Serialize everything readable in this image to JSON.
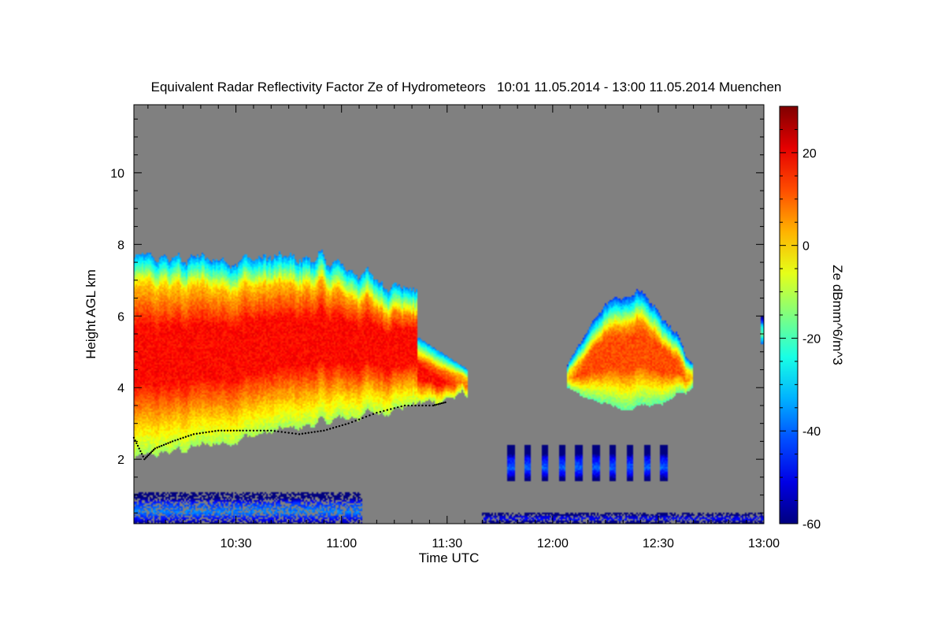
{
  "chart_data": {
    "type": "heatmap",
    "title": "Equivalent Radar Reflectivity Factor Ze of Hydrometeors   10:01 11.05.2014 - 13:00 11.05.2014 Muenchen",
    "xlabel": "Time UTC",
    "ylabel": "Height AGL km",
    "colorbar_label": "Ze dBmm^6/m^3",
    "x_unit": "minutes of day (UTC)",
    "xlim": [
      601,
      780
    ],
    "ylim": [
      0.2,
      11.9
    ],
    "x_ticks": [
      {
        "value": 630,
        "label": "10:30"
      },
      {
        "value": 660,
        "label": "11:00"
      },
      {
        "value": 690,
        "label": "11:30"
      },
      {
        "value": 720,
        "label": "12:00"
      },
      {
        "value": 750,
        "label": "12:30"
      },
      {
        "value": 780,
        "label": "13:00"
      }
    ],
    "y_ticks": [
      {
        "value": 2,
        "label": "2"
      },
      {
        "value": 4,
        "label": "4"
      },
      {
        "value": 6,
        "label": "6"
      },
      {
        "value": 8,
        "label": "8"
      },
      {
        "value": 10,
        "label": "10"
      }
    ],
    "colorbar": {
      "range": [
        -60,
        30
      ],
      "ticks": [
        {
          "value": 20,
          "label": "20"
        },
        {
          "value": 0,
          "label": "0"
        },
        {
          "value": -20,
          "label": "-20"
        },
        {
          "value": -40,
          "label": "-40"
        },
        {
          "value": -60,
          "label": "-60"
        }
      ],
      "colormap": "jet"
    },
    "background_color": "#808080",
    "echo_regions": [
      {
        "name": "main-cloud",
        "x_start": 601,
        "x_end": 696,
        "base_km": 1.5,
        "top_km": 7.9,
        "max_ze": 18
      },
      {
        "name": "cell-1205-1240",
        "x_start": 724,
        "x_end": 760,
        "base_km": 3.3,
        "top_km": 6.6,
        "max_ze": 12
      },
      {
        "name": "cell-edge-1300",
        "x_start": 779,
        "x_end": 780,
        "base_km": 5.2,
        "top_km": 6.0,
        "max_ze": -10
      },
      {
        "name": "low-plumes-1145-1240",
        "x_start": 707,
        "x_end": 753,
        "base_km": 1.4,
        "top_km": 2.4,
        "max_ze": -35
      },
      {
        "name": "surface-clutter-early",
        "x_start": 601,
        "x_end": 666,
        "base_km": 0.2,
        "top_km": 1.1,
        "max_ze": -30
      },
      {
        "name": "surface-clutter-late",
        "x_start": 700,
        "x_end": 780,
        "base_km": 0.2,
        "top_km": 0.5,
        "max_ze": -30
      }
    ],
    "cloud_base_line": {
      "x": [
        601,
        604,
        607,
        612,
        618,
        625,
        632,
        640,
        648,
        655,
        662,
        670,
        678,
        686,
        690
      ],
      "km": [
        2.6,
        2.0,
        2.3,
        2.5,
        2.7,
        2.8,
        2.8,
        2.8,
        2.7,
        2.8,
        3.0,
        3.3,
        3.5,
        3.5,
        3.6
      ]
    }
  }
}
